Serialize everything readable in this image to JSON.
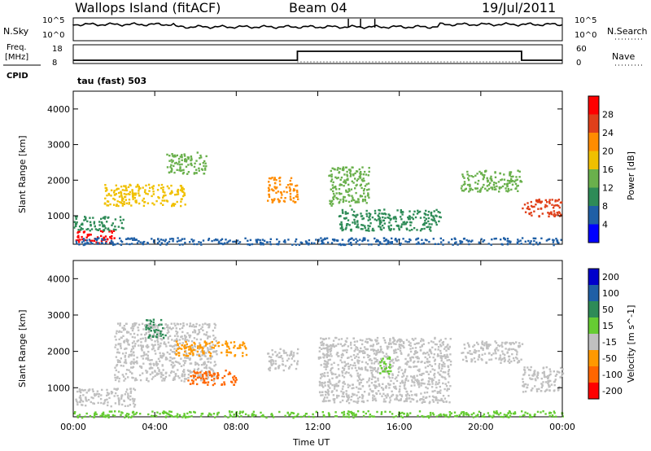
{
  "header": {
    "site": "Wallops Island (fitACF)",
    "beam": "Beam 04",
    "date": "19/Jul/2011"
  },
  "panels": {
    "nsky_label": "N.Sky",
    "nsearch_label": "N.Search",
    "nsky_ticks": [
      "10^5",
      "10^0"
    ],
    "nsearch_ticks": [
      "10^5",
      "10^0"
    ],
    "freq_label_1": "Freq.",
    "freq_label_2": "[MHz]",
    "freq_ticks": [
      "18",
      "8"
    ],
    "nave_label": "Nave",
    "nave_ticks": [
      "60",
      "0"
    ],
    "cpid_label": "CPID",
    "cpid_text": "tau (fast) 503"
  },
  "chart_data": [
    {
      "type": "heatmap",
      "name": "power",
      "ylabel": "Slant Range [km]",
      "xlabel": "Time UT",
      "x_ticks": [
        "00:00",
        "04:00",
        "08:00",
        "12:00",
        "16:00",
        "20:00",
        "00:00"
      ],
      "y_ticks": [
        "1000",
        "2000",
        "3000",
        "4000"
      ],
      "ylim": [
        200,
        4500
      ],
      "colorbar_label": "Power [dB]",
      "colorbar_ticks": [
        "4",
        "8",
        "12",
        "16",
        "20",
        "24",
        "28"
      ],
      "colors": [
        "#0000ff",
        "#1f5fa6",
        "#2e8b57",
        "#6ab04c",
        "#f0c000",
        "#ff8c00",
        "#e0401a",
        "#ff0000"
      ],
      "regions": [
        {
          "t0": 0.0,
          "t1": 2.0,
          "r0": 250,
          "r1": 600,
          "level": 7
        },
        {
          "t0": 0.0,
          "t1": 2.5,
          "r0": 600,
          "r1": 1000,
          "level": 2
        },
        {
          "t0": 1.5,
          "t1": 5.5,
          "r0": 1300,
          "r1": 1900,
          "level": 4
        },
        {
          "t0": 4.5,
          "t1": 6.5,
          "r0": 2200,
          "r1": 2800,
          "level": 3
        },
        {
          "t0": 9.5,
          "t1": 11.0,
          "r0": 1400,
          "r1": 2100,
          "level": 5
        },
        {
          "t0": 12.5,
          "t1": 14.5,
          "r0": 1300,
          "r1": 2400,
          "level": 3
        },
        {
          "t0": 13.0,
          "t1": 18.0,
          "r0": 600,
          "r1": 1200,
          "level": 2
        },
        {
          "t0": 19.0,
          "t1": 22.0,
          "r0": 1700,
          "r1": 2300,
          "level": 3
        },
        {
          "t0": 22.0,
          "t1": 24.0,
          "r0": 1000,
          "r1": 1500,
          "level": 6
        },
        {
          "t0": 0.0,
          "t1": 24.0,
          "r0": 200,
          "r1": 400,
          "level": 1
        }
      ]
    },
    {
      "type": "heatmap",
      "name": "velocity",
      "ylabel": "Slant Range [km]",
      "xlabel": "Time UT",
      "x_ticks": [
        "00:00",
        "04:00",
        "08:00",
        "12:00",
        "16:00",
        "20:00",
        "00:00"
      ],
      "y_ticks": [
        "1000",
        "2000",
        "3000",
        "4000"
      ],
      "ylim": [
        200,
        4500
      ],
      "colorbar_label": "Velocity [m s^-1]",
      "colorbar_ticks": [
        "200",
        "100",
        "50",
        "15",
        "-15",
        "-50",
        "-100",
        "-200"
      ],
      "colors": [
        "#0000cc",
        "#1f5fa6",
        "#2e8b57",
        "#66cc33",
        "#c0c0c0",
        "#ff9900",
        "#ff6600",
        "#ff0000"
      ],
      "regions": [
        {
          "t0": 0.0,
          "t1": 3.0,
          "r0": 500,
          "r1": 1000,
          "level": 4
        },
        {
          "t0": 2.0,
          "t1": 7.0,
          "r0": 1200,
          "r1": 2800,
          "level": 4
        },
        {
          "t0": 5.0,
          "t1": 8.5,
          "r0": 1900,
          "r1": 2300,
          "level": 5
        },
        {
          "t0": 5.5,
          "t1": 8.0,
          "r0": 1100,
          "r1": 1500,
          "level": 6
        },
        {
          "t0": 3.5,
          "t1": 4.5,
          "r0": 2400,
          "r1": 2900,
          "level": 2
        },
        {
          "t0": 9.5,
          "t1": 11.0,
          "r0": 1500,
          "r1": 2100,
          "level": 4
        },
        {
          "t0": 12.0,
          "t1": 18.5,
          "r0": 600,
          "r1": 2400,
          "level": 4
        },
        {
          "t0": 15.0,
          "t1": 15.6,
          "r0": 1400,
          "r1": 1900,
          "level": 3
        },
        {
          "t0": 19.0,
          "t1": 22.0,
          "r0": 1700,
          "r1": 2300,
          "level": 4
        },
        {
          "t0": 22.0,
          "t1": 24.0,
          "r0": 900,
          "r1": 1600,
          "level": 4
        },
        {
          "t0": 0.0,
          "t1": 24.0,
          "r0": 200,
          "r1": 380,
          "level": 3
        }
      ]
    }
  ]
}
